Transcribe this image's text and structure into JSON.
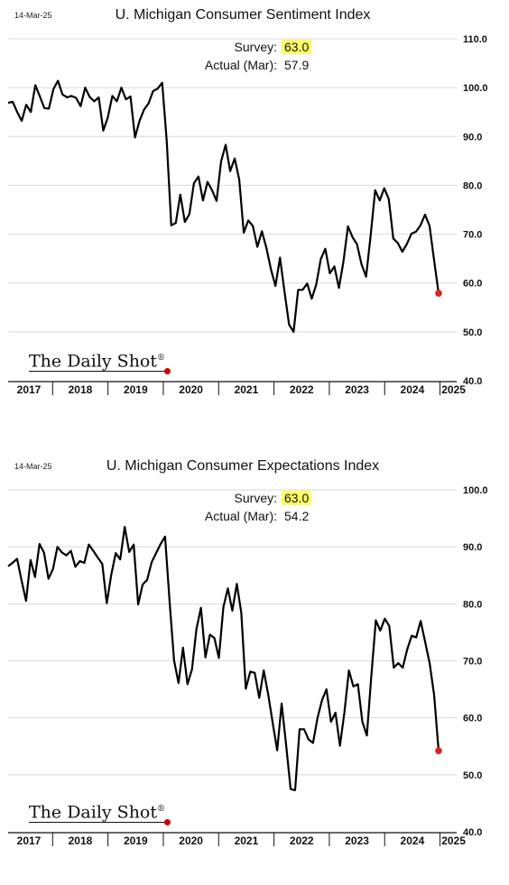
{
  "chart_data": [
    {
      "type": "line",
      "date_label": "14-Mar-25",
      "title": "U. Michigan Consumer Sentiment Index",
      "annotation": {
        "survey_label": "Survey:",
        "survey_value": "63.0",
        "actual_label": "Actual (Mar):",
        "actual_value": "57.9"
      },
      "ylim": [
        40,
        110
      ],
      "yticks": [
        "40.0",
        "50.0",
        "60.0",
        "70.0",
        "80.0",
        "90.0",
        "100.0",
        "110.0"
      ],
      "xticks": [
        "2017",
        "2018",
        "2019",
        "2020",
        "2021",
        "2022",
        "2023",
        "2024",
        "2025"
      ],
      "grid": true,
      "highlight_color": "#e02020",
      "series": [
        {
          "values": [
            96.9,
            97.1,
            95.0,
            93.2,
            96.5,
            95.0,
            100.5,
            98.2,
            95.8,
            95.7,
            99.7,
            101.4,
            98.6,
            98.0,
            98.3,
            97.9,
            96.2,
            100.0,
            98.1,
            97.2,
            98.0,
            91.2,
            93.9,
            98.3,
            97.2,
            100.0,
            97.6,
            98.2,
            89.8,
            93.2,
            95.5,
            96.8,
            99.3,
            99.8,
            101.0,
            89.1,
            71.8,
            72.3,
            78.1,
            72.5,
            74.1,
            80.4,
            81.8,
            76.9,
            80.7,
            79.0,
            76.8,
            84.9,
            88.3,
            82.9,
            85.5,
            81.2,
            70.3,
            72.8,
            71.7,
            67.4,
            70.6,
            67.2,
            62.8,
            59.4,
            65.2,
            58.2,
            51.5,
            50.0,
            58.6,
            58.6,
            59.9,
            56.8,
            59.7,
            64.9,
            67.0,
            62.0,
            63.4,
            59.0,
            64.4,
            71.6,
            69.4,
            67.9,
            63.8,
            61.3,
            69.7,
            79.0,
            76.9,
            79.4,
            77.2,
            69.1,
            68.2,
            66.4,
            68.0,
            70.1,
            70.5,
            71.8,
            74.0,
            71.7,
            64.7,
            57.9
          ]
        }
      ],
      "brand": "The Daily Shot",
      "brand_mark": "®"
    },
    {
      "type": "line",
      "date_label": "14-Mar-25",
      "title": "U. Michigan Consumer Expectations Index",
      "annotation": {
        "survey_label": "Survey:",
        "survey_value": "63.0",
        "actual_label": "Actual (Mar):",
        "actual_value": "54.2"
      },
      "ylim": [
        40,
        100
      ],
      "yticks": [
        "40.0",
        "50.0",
        "60.0",
        "70.0",
        "80.0",
        "90.0",
        "100.0"
      ],
      "xticks": [
        "2017",
        "2018",
        "2019",
        "2020",
        "2021",
        "2022",
        "2023",
        "2024",
        "2025"
      ],
      "grid": true,
      "highlight_color": "#e02020",
      "series": [
        {
          "values": [
            86.6,
            87.2,
            87.9,
            84.1,
            80.5,
            87.7,
            84.7,
            90.5,
            89.0,
            84.4,
            86.1,
            90.0,
            89.0,
            88.5,
            89.3,
            86.5,
            87.5,
            87.2,
            90.4,
            89.3,
            88.1,
            87.0,
            80.1,
            85.1,
            88.9,
            87.8,
            93.5,
            89.1,
            90.4,
            79.9,
            83.4,
            84.2,
            87.3,
            88.9,
            90.5,
            91.8,
            80.5,
            70.1,
            66.1,
            72.3,
            65.9,
            68.5,
            75.6,
            79.3,
            70.6,
            74.6,
            74.0,
            70.5,
            79.4,
            82.7,
            78.8,
            83.5,
            78.4,
            65.1,
            68.1,
            67.9,
            63.5,
            68.3,
            64.1,
            59.1,
            54.3,
            62.5,
            55.2,
            47.5,
            47.3,
            58.0,
            58.0,
            56.2,
            55.6,
            60.0,
            63.1,
            65.0,
            59.3,
            60.9,
            55.1,
            61.0,
            68.3,
            65.5,
            65.9,
            59.3,
            56.9,
            67.4,
            77.1,
            75.3,
            77.4,
            76.1,
            68.8,
            69.6,
            68.8,
            72.0,
            74.4,
            74.1,
            77.0,
            73.3,
            69.6,
            64.0,
            54.2
          ]
        }
      ],
      "brand": "The Daily Shot",
      "brand_mark": "®"
    }
  ]
}
